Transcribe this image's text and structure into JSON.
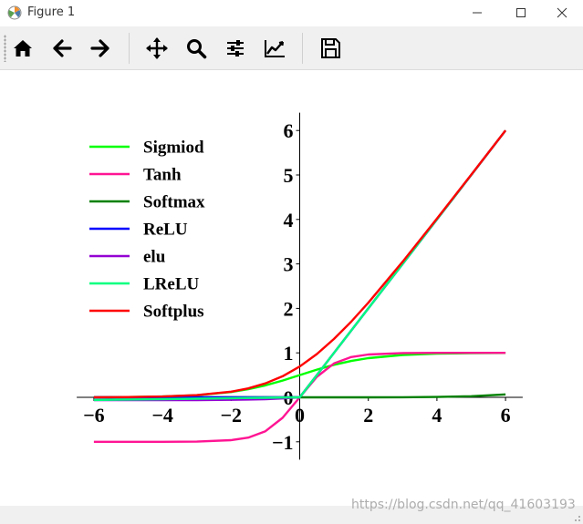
{
  "window": {
    "title": "Figure 1",
    "icons": {
      "app": "matplotlib-icon",
      "minimize": "minimize-icon",
      "maximize": "maximize-icon",
      "close": "close-icon"
    }
  },
  "toolbar": {
    "buttons": [
      {
        "icon": "home-icon",
        "action": "home"
      },
      {
        "icon": "arrow-left-icon",
        "action": "back"
      },
      {
        "icon": "arrow-right-icon",
        "action": "forward"
      },
      {
        "icon": "move-icon",
        "action": "pan"
      },
      {
        "icon": "magnifier-icon",
        "action": "zoom"
      },
      {
        "icon": "sliders-icon",
        "action": "configure-subplots"
      },
      {
        "icon": "line-chart-icon",
        "action": "edit-axis"
      },
      {
        "icon": "save-icon",
        "action": "save"
      }
    ]
  },
  "watermark": "https://blog.csdn.net/qq_41603193",
  "chart_data": {
    "type": "line",
    "title": "",
    "xlabel": "",
    "ylabel": "",
    "xlim": [
      -6.5,
      6.5
    ],
    "ylim": [
      -1.4,
      6.4
    ],
    "xticks": [
      -6,
      -4,
      -2,
      0,
      2,
      4,
      6
    ],
    "yticks": [
      -1,
      0,
      1,
      2,
      3,
      4,
      5,
      6
    ],
    "xtick_labels": [
      "−6",
      "−4",
      "−2",
      "0",
      "2",
      "4",
      "6"
    ],
    "ytick_labels": [
      "−1",
      "0",
      "1",
      "2",
      "3",
      "4",
      "5",
      "6"
    ],
    "grid": false,
    "legend_position": "upper-left",
    "spines": "centered at origin",
    "x": [
      -6,
      -5,
      -4,
      -3,
      -2,
      -1.5,
      -1,
      -0.5,
      0,
      0.5,
      1,
      1.5,
      2,
      3,
      4,
      5,
      6
    ],
    "series": [
      {
        "name": "Sigmiod",
        "color": "#00ff00",
        "values": [
          0.002,
          0.007,
          0.018,
          0.047,
          0.119,
          0.182,
          0.269,
          0.378,
          0.5,
          0.622,
          0.731,
          0.818,
          0.881,
          0.953,
          0.982,
          0.993,
          0.998
        ]
      },
      {
        "name": "Tanh",
        "color": "#ff1493",
        "values": [
          -1.0,
          -1.0,
          -0.999,
          -0.995,
          -0.964,
          -0.905,
          -0.762,
          -0.462,
          0.0,
          0.462,
          0.762,
          0.905,
          0.964,
          0.995,
          0.999,
          1.0,
          1.0
        ]
      },
      {
        "name": "Softmax",
        "color": "#008000",
        "values": [
          0.0,
          0.0,
          0.0,
          0.0,
          0.0,
          0.0,
          0.0,
          0.0,
          0.0,
          0.0,
          0.0,
          0.001,
          0.001,
          0.003,
          0.009,
          0.024,
          0.065
        ]
      },
      {
        "name": "ReLU",
        "color": "#0000ff",
        "values": [
          0,
          0,
          0,
          0,
          0,
          0,
          0,
          0,
          0,
          0.5,
          1,
          1.5,
          2,
          3,
          4,
          5,
          6
        ]
      },
      {
        "name": "elu",
        "color": "#9400d3",
        "values": [
          -0.064,
          -0.064,
          -0.063,
          -0.061,
          -0.055,
          -0.049,
          -0.04,
          -0.025,
          0,
          0.5,
          1,
          1.5,
          2,
          3,
          4,
          5,
          6
        ]
      },
      {
        "name": "LReLU",
        "color": "#00ff7f",
        "values": [
          -0.06,
          -0.05,
          -0.04,
          -0.03,
          -0.02,
          -0.015,
          -0.01,
          -0.005,
          0,
          0.5,
          1,
          1.5,
          2,
          3,
          4,
          5,
          6
        ]
      },
      {
        "name": "Softplus",
        "color": "#ff0000",
        "values": [
          0.002,
          0.007,
          0.018,
          0.049,
          0.127,
          0.201,
          0.313,
          0.474,
          0.693,
          0.974,
          1.313,
          1.701,
          2.127,
          3.049,
          4.018,
          5.007,
          6.002
        ]
      }
    ]
  }
}
